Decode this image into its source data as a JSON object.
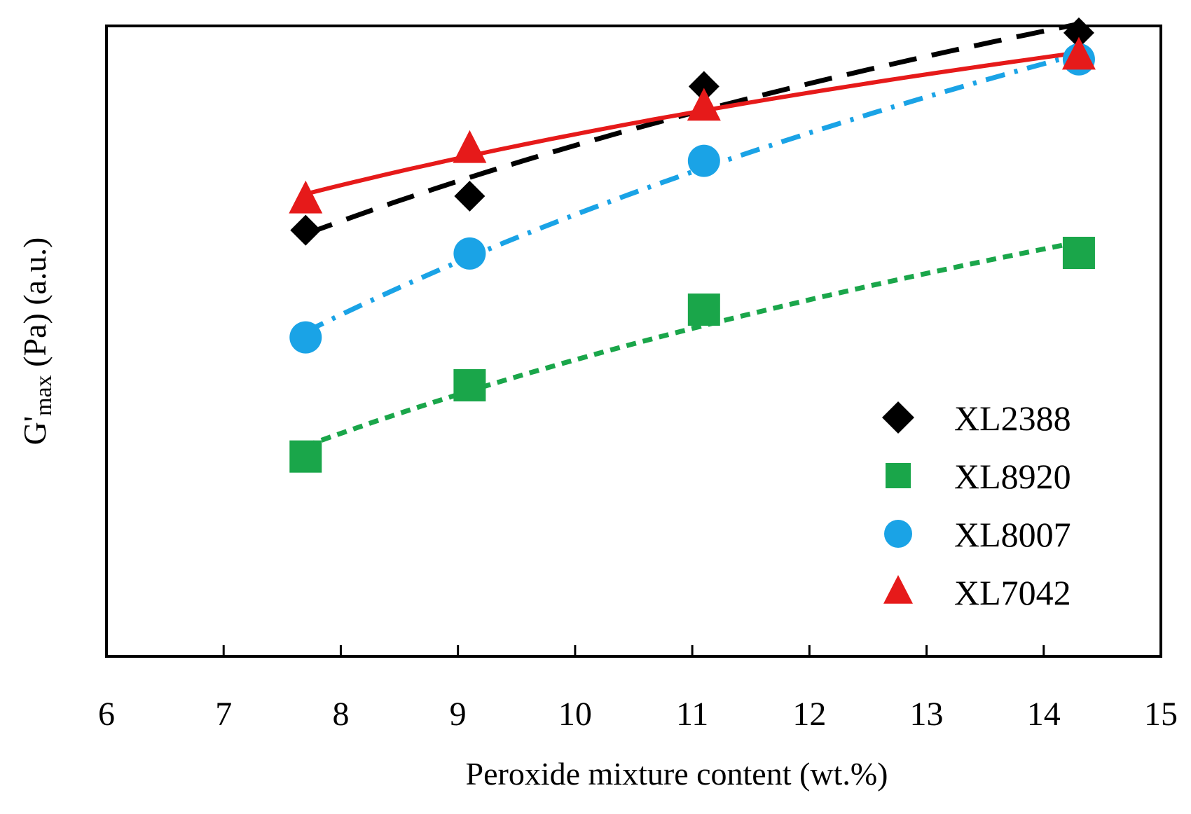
{
  "chart_data": {
    "type": "scatter",
    "xlabel": "Peroxide mixture content (wt.%)",
    "ylabel": {
      "main": "G'",
      "sub": "max",
      "rest": " (Pa) (a.u.)"
    },
    "xlim": [
      6,
      15
    ],
    "xticks": [
      "6",
      "7",
      "8",
      "9",
      "10",
      "11",
      "12",
      "13",
      "14",
      "15"
    ],
    "ylim": [
      0,
      100
    ],
    "yticks_shown": false,
    "grid": false,
    "legend": "bottom-right",
    "series": [
      {
        "name": "XL2388",
        "marker": "diamond",
        "color": "#000000",
        "line": "long-dash",
        "x": [
          7.7,
          9.1,
          11.1,
          14.3
        ],
        "y": [
          67.6,
          73.0,
          90.4,
          98.9
        ]
      },
      {
        "name": "XL8920",
        "marker": "square",
        "color": "#1aa64a",
        "line": "short-dash",
        "x": [
          7.7,
          9.1,
          11.1,
          14.3
        ],
        "y": [
          31.7,
          43.0,
          55.0,
          64.0
        ]
      },
      {
        "name": "XL8007",
        "marker": "circle",
        "color": "#1aa3e6",
        "line": "dash-dot",
        "x": [
          7.7,
          9.1,
          11.1,
          14.3
        ],
        "y": [
          50.6,
          63.9,
          78.6,
          94.7
        ]
      },
      {
        "name": "XL7042",
        "marker": "triangle",
        "color": "#e61a1a",
        "line": "solid",
        "x": [
          7.7,
          9.1,
          11.1,
          14.3
        ],
        "y": [
          72.4,
          80.4,
          87.1,
          95.2
        ]
      }
    ]
  }
}
